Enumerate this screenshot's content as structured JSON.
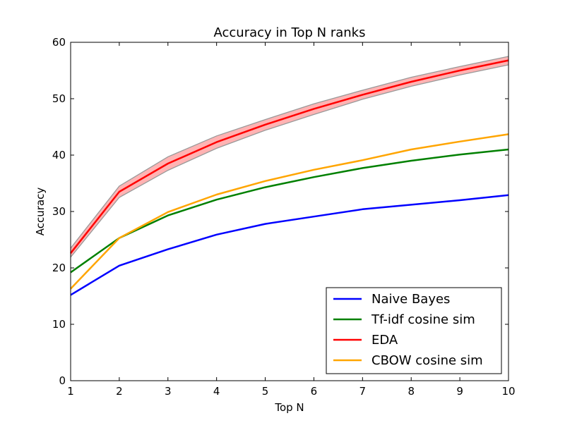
{
  "chart_data": {
    "type": "line",
    "title": "Accuracy in Top N ranks",
    "xlabel": "Top N",
    "ylabel": "Accuracy",
    "xlim": [
      1,
      10
    ],
    "ylim": [
      0,
      60
    ],
    "x": [
      1,
      2,
      3,
      4,
      5,
      6,
      7,
      8,
      9,
      10
    ],
    "x_ticks": [
      "1",
      "2",
      "3",
      "4",
      "5",
      "6",
      "7",
      "8",
      "9",
      "10"
    ],
    "y_ticks": [
      "0",
      "10",
      "20",
      "30",
      "40",
      "50",
      "60"
    ],
    "grid": false,
    "legend_position": "lower right",
    "series": [
      {
        "name": "Naive Bayes",
        "color": "#0000ff",
        "values": [
          15.2,
          20.4,
          23.3,
          25.9,
          27.8,
          29.1,
          30.4,
          31.2,
          32.0,
          32.9
        ]
      },
      {
        "name": "Tf-idf cosine sim",
        "color": "#008000",
        "values": [
          19.2,
          25.3,
          29.3,
          32.1,
          34.3,
          36.1,
          37.7,
          39.0,
          40.1,
          41.0
        ]
      },
      {
        "name": "EDA",
        "color": "#ff0000",
        "band_color": "#ff9999",
        "values": [
          22.6,
          33.5,
          38.5,
          42.3,
          45.4,
          48.2,
          50.7,
          53.0,
          55.0,
          56.8
        ],
        "lower": [
          21.9,
          32.5,
          37.3,
          41.2,
          44.4,
          47.2,
          49.9,
          52.2,
          54.2,
          56.0
        ],
        "upper": [
          23.5,
          34.5,
          39.7,
          43.4,
          46.3,
          49.1,
          51.5,
          53.8,
          55.7,
          57.5
        ]
      },
      {
        "name": "CBOW cosine sim",
        "color": "#ffa500",
        "values": [
          16.3,
          25.3,
          29.9,
          33.0,
          35.4,
          37.4,
          39.1,
          41.0,
          42.4,
          43.7
        ]
      }
    ]
  }
}
